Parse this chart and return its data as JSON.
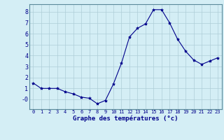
{
  "hours": [
    0,
    1,
    2,
    3,
    4,
    5,
    6,
    7,
    8,
    9,
    10,
    11,
    12,
    13,
    14,
    15,
    16,
    17,
    18,
    19,
    20,
    21,
    22,
    23
  ],
  "temps": [
    1.5,
    1.0,
    1.0,
    1.0,
    0.7,
    0.5,
    0.2,
    0.1,
    -0.4,
    -0.1,
    1.4,
    3.3,
    5.7,
    6.5,
    6.9,
    8.2,
    8.2,
    7.0,
    5.5,
    4.4,
    3.6,
    3.2,
    3.5,
    3.8
  ],
  "line_color": "#00008B",
  "marker": "*",
  "marker_size": 3,
  "bg_color": "#d4eef5",
  "grid_color": "#aecdd8",
  "xlabel": "Graphe des températures (°c)",
  "tick_color": "#00008B",
  "ylim": [
    -0.9,
    8.7
  ],
  "xlim": [
    -0.5,
    23.5
  ],
  "yticks": [
    0,
    1,
    2,
    3,
    4,
    5,
    6,
    7,
    8
  ],
  "ytick_labels": [
    "-0",
    "1",
    "2",
    "3",
    "4",
    "5",
    "6",
    "7",
    "8"
  ],
  "xticks": [
    0,
    1,
    2,
    3,
    4,
    5,
    6,
    7,
    8,
    9,
    10,
    11,
    12,
    13,
    14,
    15,
    16,
    17,
    18,
    19,
    20,
    21,
    22,
    23
  ]
}
